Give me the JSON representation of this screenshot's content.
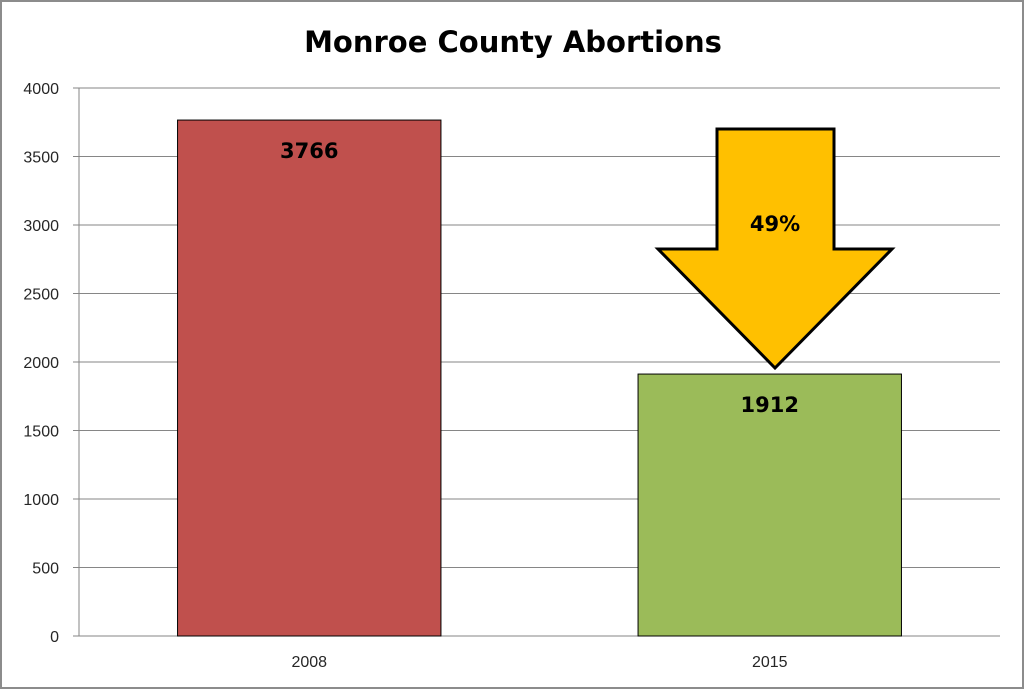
{
  "chart_data": {
    "type": "bar",
    "title": "Monroe County Abortions",
    "categories": [
      "2008",
      "2015"
    ],
    "values": [
      3766,
      1912
    ],
    "data_labels": [
      "3766",
      "1912"
    ],
    "colors": [
      "#c0504d",
      "#9bbb59"
    ],
    "ylim": [
      0,
      4000
    ],
    "yticks": [
      "0",
      "500",
      "1000",
      "1500",
      "2000",
      "2500",
      "3000",
      "3500",
      "4000"
    ],
    "xlabel": "",
    "ylabel": "",
    "grid": true,
    "legend": "none",
    "annotation": {
      "shape": "down-arrow",
      "text": "49%",
      "color": "#ffc000",
      "points_to": "2015"
    }
  }
}
